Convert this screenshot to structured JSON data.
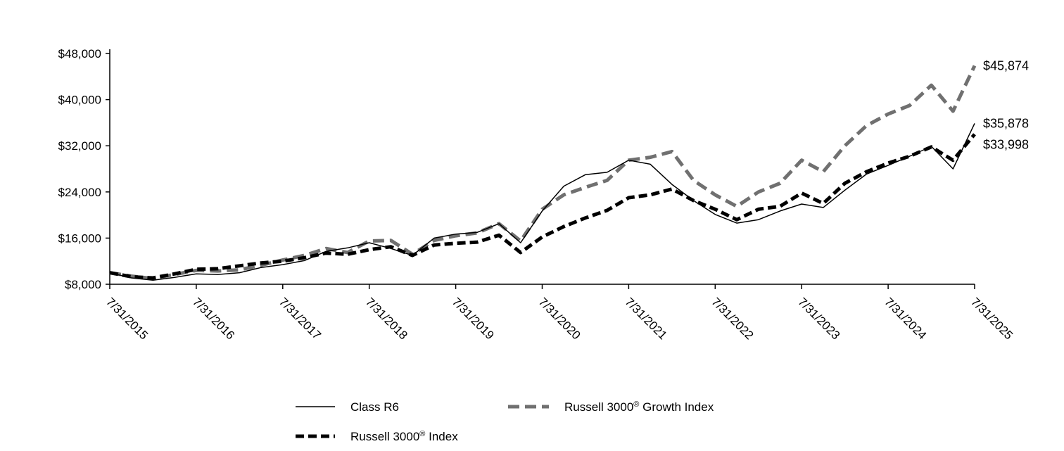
{
  "chart_data": {
    "type": "line",
    "title": "",
    "xlabel": "",
    "ylabel": "",
    "ylim": [
      8000,
      48000
    ],
    "yticks": [
      8000,
      16000,
      24000,
      32000,
      40000,
      48000
    ],
    "ytick_labels": [
      "$8,000",
      "$16,000",
      "$24,000",
      "$32,000",
      "$40,000",
      "$48,000"
    ],
    "xlim_years": [
      0,
      10
    ],
    "xtick_labels": [
      "7/31/2015",
      "7/31/2016",
      "7/31/2017",
      "7/31/2018",
      "7/31/2019",
      "7/31/2020",
      "7/31/2021",
      "7/31/2022",
      "7/31/2023",
      "7/31/2024",
      "7/31/2025"
    ],
    "x_step_years": 0.25,
    "grid": false,
    "legend_placement": "bottom",
    "series": [
      {
        "name": "Russell 3000® Growth Index",
        "legend_main": "Russell 3000",
        "legend_sup": "®",
        "legend_rest": " Growth Index",
        "color": "#707070",
        "style": "dashed",
        "end_label": "$45,874",
        "values": [
          10000,
          9400,
          9000,
          9700,
          10400,
          10300,
          10500,
          11300,
          12200,
          13000,
          14200,
          13500,
          15500,
          15600,
          13200,
          15600,
          16400,
          16900,
          18500,
          15500,
          21000,
          23500,
          24800,
          26000,
          29500,
          30000,
          31000,
          26000,
          23500,
          21500,
          24000,
          25500,
          29500,
          27500,
          32000,
          35500,
          37500,
          39000,
          42500,
          38000,
          45874
        ]
      },
      {
        "name": "Russell 3000® Index",
        "legend_main": "Russell 3000",
        "legend_sup": "®",
        "legend_rest": " Index",
        "color": "#000000",
        "style": "thick-dashed",
        "end_label": "$33,998",
        "values": [
          10000,
          9300,
          9100,
          9800,
          10600,
          10700,
          11200,
          11700,
          12000,
          12600,
          13400,
          13200,
          14000,
          14500,
          13000,
          14800,
          15100,
          15300,
          16500,
          13500,
          16200,
          18000,
          19500,
          20800,
          23000,
          23500,
          24500,
          22500,
          21000,
          19200,
          21000,
          21500,
          23800,
          22000,
          25500,
          27500,
          29000,
          30200,
          31800,
          29500,
          33998
        ]
      },
      {
        "name": "Class R6",
        "legend_main": "Class R6",
        "legend_sup": "",
        "legend_rest": "",
        "color": "#000000",
        "style": "solid",
        "end_label": "$35,878",
        "values": [
          10000,
          9100,
          8700,
          9200,
          9800,
          9700,
          10000,
          10900,
          11400,
          12100,
          13700,
          14300,
          15200,
          14200,
          13000,
          16000,
          16700,
          17000,
          18500,
          15200,
          20700,
          25000,
          27000,
          27400,
          29500,
          28800,
          25300,
          22500,
          20100,
          18600,
          19200,
          20700,
          21900,
          21300,
          24300,
          27100,
          28600,
          30200,
          31900,
          28000,
          35878
        ]
      }
    ]
  }
}
